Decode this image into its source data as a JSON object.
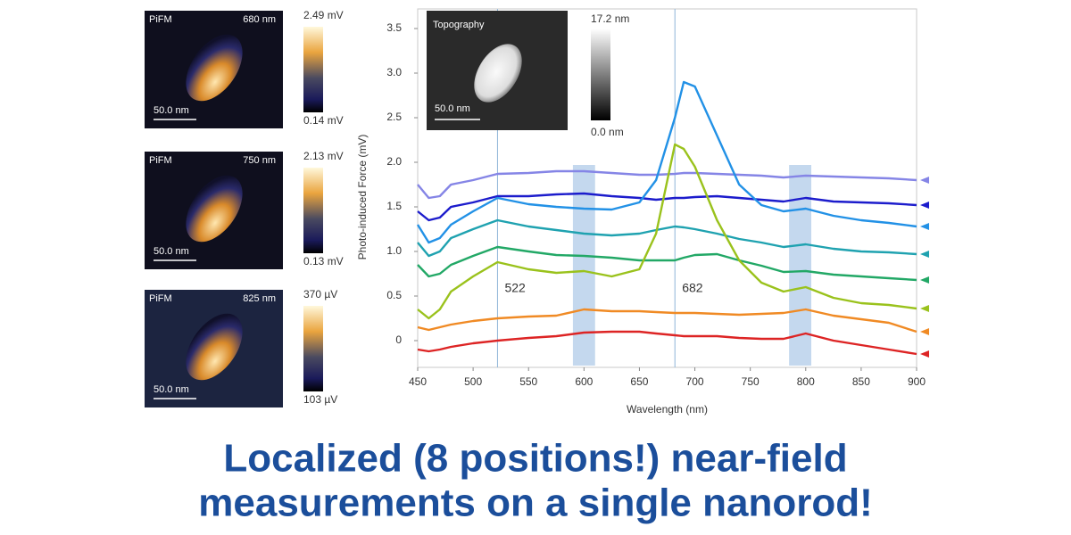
{
  "chart_data": {
    "type": "line",
    "x_label": "Wavelength (nm)",
    "y_label": "Photo-induced Force (mV)",
    "x": [
      450,
      460,
      470,
      480,
      500,
      522,
      550,
      575,
      600,
      625,
      650,
      665,
      682,
      690,
      700,
      720,
      740,
      760,
      780,
      800,
      825,
      850,
      875,
      900
    ],
    "series": [
      {
        "color": "#8585e6",
        "values": [
          1.75,
          1.6,
          1.62,
          1.75,
          1.8,
          1.87,
          1.88,
          1.9,
          1.9,
          1.88,
          1.86,
          1.86,
          1.87,
          1.88,
          1.88,
          1.87,
          1.86,
          1.85,
          1.83,
          1.85,
          1.84,
          1.83,
          1.82,
          1.8
        ]
      },
      {
        "color": "#1c1ccc",
        "values": [
          1.45,
          1.35,
          1.38,
          1.5,
          1.55,
          1.62,
          1.62,
          1.64,
          1.65,
          1.62,
          1.6,
          1.58,
          1.6,
          1.6,
          1.61,
          1.62,
          1.6,
          1.58,
          1.56,
          1.6,
          1.56,
          1.55,
          1.54,
          1.52
        ]
      },
      {
        "color": "#2291e6",
        "values": [
          1.3,
          1.1,
          1.15,
          1.3,
          1.45,
          1.6,
          1.53,
          1.5,
          1.48,
          1.47,
          1.55,
          1.8,
          2.5,
          2.9,
          2.85,
          2.3,
          1.75,
          1.52,
          1.45,
          1.48,
          1.4,
          1.35,
          1.32,
          1.28
        ]
      },
      {
        "color": "#1fa2b0",
        "values": [
          1.1,
          0.95,
          1.0,
          1.15,
          1.25,
          1.35,
          1.28,
          1.24,
          1.2,
          1.18,
          1.2,
          1.24,
          1.28,
          1.27,
          1.25,
          1.2,
          1.14,
          1.1,
          1.05,
          1.08,
          1.03,
          1.0,
          0.99,
          0.97
        ]
      },
      {
        "color": "#22a866",
        "values": [
          0.85,
          0.72,
          0.75,
          0.85,
          0.95,
          1.05,
          1.0,
          0.96,
          0.95,
          0.93,
          0.9,
          0.9,
          0.9,
          0.93,
          0.96,
          0.97,
          0.9,
          0.84,
          0.77,
          0.78,
          0.74,
          0.72,
          0.7,
          0.68
        ]
      },
      {
        "color": "#9ac21c",
        "values": [
          0.35,
          0.25,
          0.35,
          0.55,
          0.72,
          0.88,
          0.8,
          0.76,
          0.78,
          0.72,
          0.8,
          1.2,
          2.2,
          2.15,
          1.95,
          1.35,
          0.9,
          0.65,
          0.55,
          0.6,
          0.48,
          0.42,
          0.4,
          0.36
        ]
      },
      {
        "color": "#f08a24",
        "values": [
          0.15,
          0.12,
          0.15,
          0.18,
          0.22,
          0.25,
          0.27,
          0.28,
          0.35,
          0.33,
          0.33,
          0.32,
          0.31,
          0.31,
          0.31,
          0.3,
          0.29,
          0.3,
          0.31,
          0.35,
          0.28,
          0.24,
          0.2,
          0.1
        ]
      },
      {
        "color": "#dd2424",
        "values": [
          -0.1,
          -0.12,
          -0.1,
          -0.07,
          -0.03,
          0.0,
          0.03,
          0.05,
          0.09,
          0.1,
          0.1,
          0.08,
          0.06,
          0.05,
          0.05,
          0.05,
          0.03,
          0.02,
          0.02,
          0.08,
          0.0,
          -0.05,
          -0.1,
          -0.15
        ]
      }
    ],
    "xlim": [
      450,
      900
    ],
    "xticks": [
      450,
      500,
      550,
      600,
      650,
      700,
      750,
      800,
      850,
      900
    ],
    "ylim": [
      -0.3,
      3.72
    ],
    "yticks": [
      0,
      0.5,
      {
        "value": 1,
        "label": "1.0"
      },
      1.5,
      {
        "value": 2,
        "label": "2.0"
      },
      2.5,
      {
        "value": 3,
        "label": "3.0"
      },
      3.5
    ],
    "vlines": [
      522,
      682
    ],
    "bands": [
      [
        590,
        610
      ],
      [
        785,
        805
      ]
    ]
  },
  "inset": {
    "title": "Topography",
    "scale": "50.0 nm",
    "cbar_max": "17.2 nm",
    "cbar_min": "0.0 nm"
  },
  "panels": [
    {
      "title": "PiFM",
      "wavelength": "680 nm",
      "scale": "50.0 nm",
      "cbar_max": "2.49 mV",
      "cbar_min": "0.14 mV"
    },
    {
      "title": "PiFM",
      "wavelength": "750 nm",
      "scale": "50.0 nm",
      "cbar_max": "2.13 mV",
      "cbar_min": "0.13 mV"
    },
    {
      "title": "PiFM",
      "wavelength": "825 nm",
      "scale": "50.0 nm",
      "cbar_max": "370 µV",
      "cbar_min": "103 µV"
    }
  ],
  "headline": [
    "Localized (8 positions!) near-field",
    "measurements on a single nanorod!"
  ]
}
